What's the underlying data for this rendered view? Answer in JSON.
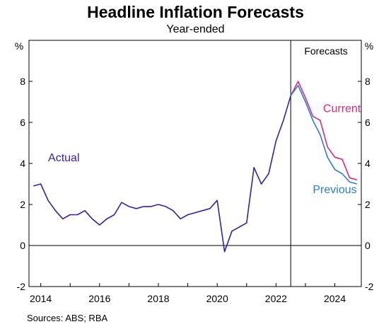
{
  "title": "Headline Inflation Forecasts",
  "subtitle": "Year-ended",
  "source": "Sources: ABS; RBA",
  "chart_data": {
    "type": "line",
    "title": "Headline Inflation Forecasts",
    "subtitle": "Year-ended",
    "ylabel_left": "%",
    "ylabel_right": "%",
    "ylim": [
      -2,
      10
    ],
    "yticks": [
      -2,
      0,
      2,
      4,
      6,
      8
    ],
    "xlim": [
      2013.6,
      2024.9
    ],
    "xticks": [
      2014,
      2016,
      2018,
      2020,
      2022,
      2024
    ],
    "grid": false,
    "zero_line": true,
    "forecast_start": 2022.5,
    "forecast_label": "Forecasts",
    "colors": {
      "actual": "#3a1fa0",
      "current": "#e0287a",
      "previous": "#2a7fd0"
    },
    "series": [
      {
        "name": "Actual",
        "x": [
          2013.75,
          2014.0,
          2014.25,
          2014.5,
          2014.75,
          2015.0,
          2015.25,
          2015.5,
          2015.75,
          2016.0,
          2016.25,
          2016.5,
          2016.75,
          2017.0,
          2017.25,
          2017.5,
          2017.75,
          2018.0,
          2018.25,
          2018.5,
          2018.75,
          2019.0,
          2019.25,
          2019.5,
          2019.75,
          2020.0,
          2020.25,
          2020.5,
          2020.75,
          2021.0,
          2021.25,
          2021.5,
          2021.75,
          2022.0,
          2022.25,
          2022.5
        ],
        "y": [
          2.9,
          3.0,
          2.2,
          1.7,
          1.3,
          1.5,
          1.5,
          1.7,
          1.3,
          1.0,
          1.3,
          1.5,
          2.1,
          1.9,
          1.8,
          1.9,
          1.9,
          2.0,
          1.9,
          1.7,
          1.3,
          1.5,
          1.6,
          1.7,
          1.8,
          2.2,
          -0.3,
          0.7,
          0.9,
          1.1,
          3.8,
          3.0,
          3.5,
          5.1,
          6.1,
          7.3
        ]
      },
      {
        "name": "Current",
        "x": [
          2022.5,
          2022.75,
          2023.0,
          2023.25,
          2023.5,
          2023.75,
          2024.0,
          2024.25,
          2024.5,
          2024.75
        ],
        "y": [
          7.3,
          8.0,
          7.2,
          6.3,
          6.1,
          4.8,
          4.3,
          4.2,
          3.3,
          3.2
        ]
      },
      {
        "name": "Previous",
        "x": [
          2022.5,
          2022.75,
          2023.0,
          2023.25,
          2023.5,
          2023.75,
          2024.0,
          2024.25,
          2024.5,
          2024.75
        ],
        "y": [
          7.3,
          7.8,
          7.0,
          6.1,
          5.4,
          4.3,
          3.7,
          3.5,
          3.1,
          3.0
        ]
      }
    ]
  }
}
